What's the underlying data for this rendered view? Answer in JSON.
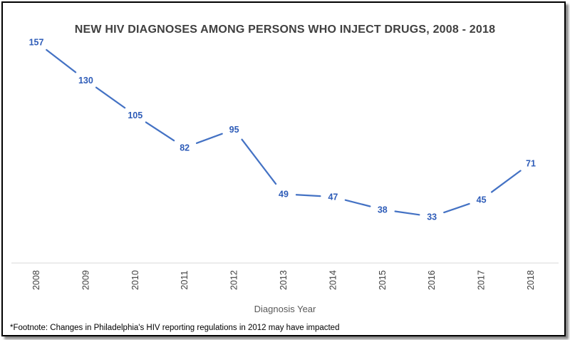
{
  "chart_data": {
    "type": "line",
    "title": "NEW HIV DIAGNOSES AMONG PERSONS WHO INJECT DRUGS, 2008 - 2018",
    "xlabel": "Diagnosis Year",
    "ylabel": "",
    "categories": [
      "2008",
      "2009",
      "2010",
      "2011",
      "2012",
      "2013",
      "2014",
      "2015",
      "2016",
      "2017",
      "2018"
    ],
    "values": [
      157,
      130,
      105,
      82,
      95,
      49,
      47,
      38,
      33,
      45,
      71
    ],
    "ylim": [
      0,
      175
    ],
    "grid": false,
    "line_color": "#4472c4",
    "label_color": "#2e5cb8"
  },
  "footnote": "*Footnote: Changes in Philadelphia's HIV reporting regulations in 2012 may have impacted"
}
